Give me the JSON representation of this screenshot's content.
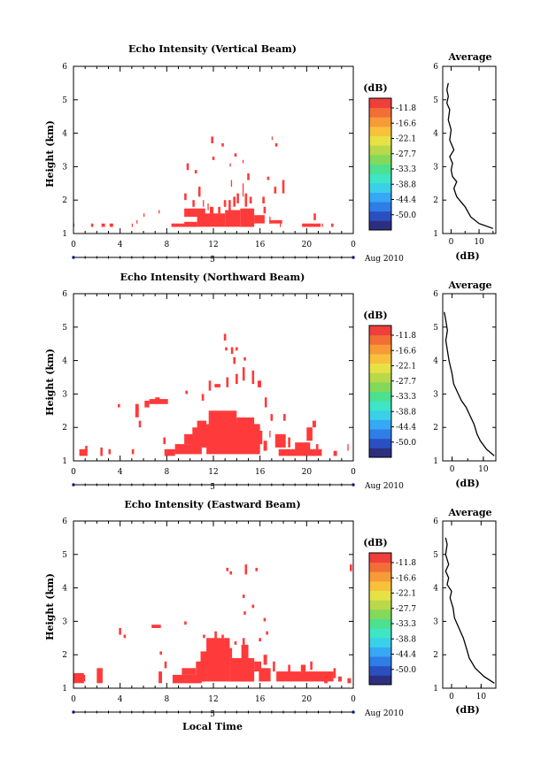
{
  "figure": {
    "bottom_xlabel": "Local Time",
    "colors": [
      "#2b2f7e",
      "#2a4fc1",
      "#2f7de6",
      "#36a8f4",
      "#3ad1e8",
      "#3ee6c5",
      "#4de08e",
      "#83d95a",
      "#b9d94a",
      "#e6e245",
      "#f7c13c",
      "#f79a38",
      "#f26e36",
      "#ee3f3b"
    ]
  },
  "chart_data": [
    {
      "type": "heatmap",
      "title": "Echo Intensity (Vertical Beam)",
      "ylabel": "Height (km)",
      "ylim": [
        1,
        6
      ],
      "yticks": [
        "1",
        "2",
        "3",
        "4",
        "5",
        "6"
      ],
      "xlim": [
        0,
        24
      ],
      "xticks": [
        "0",
        "4",
        "8",
        "12",
        "16",
        "20",
        "0"
      ],
      "date_day": "5",
      "date_label": "Aug 2010",
      "colorbar": {
        "label": "(dB)",
        "levels": [
          "-11.8",
          "-16.6",
          "-22.1",
          "-27.7",
          "-33.3",
          "-38.8",
          "-44.4",
          "-50.0"
        ]
      },
      "fill_color": "#ff3a3a",
      "segments": [
        [
          0.0,
          1.2,
          0.0,
          1.3
        ],
        [
          1.5,
          1.2,
          1.7,
          1.3
        ],
        [
          2.4,
          1.2,
          2.7,
          1.3
        ],
        [
          3.1,
          1.2,
          3.4,
          1.3
        ],
        [
          5.0,
          1.2,
          5.1,
          1.3
        ],
        [
          5.4,
          1.3,
          5.5,
          1.4
        ],
        [
          6.0,
          1.5,
          6.1,
          1.6
        ],
        [
          7.3,
          1.6,
          7.4,
          1.7
        ],
        [
          8.4,
          1.2,
          9.6,
          1.3
        ],
        [
          9.5,
          1.2,
          10.6,
          1.35
        ],
        [
          9.5,
          1.5,
          11.3,
          1.75
        ],
        [
          10.6,
          1.2,
          13.0,
          1.6
        ],
        [
          10.2,
          1.8,
          10.4,
          2.0
        ],
        [
          10.7,
          2.1,
          10.9,
          2.4
        ],
        [
          11.1,
          1.8,
          11.2,
          2.0
        ],
        [
          11.5,
          1.7,
          11.6,
          1.9
        ],
        [
          11.7,
          1.6,
          12.0,
          1.8
        ],
        [
          12.4,
          1.6,
          12.6,
          1.8
        ],
        [
          12.9,
          1.8,
          13.1,
          2.0
        ],
        [
          13.0,
          1.2,
          14.3,
          1.7
        ],
        [
          13.3,
          1.7,
          13.5,
          2.0
        ],
        [
          13.7,
          1.8,
          13.9,
          2.1
        ],
        [
          14.3,
          1.2,
          15.5,
          1.75
        ],
        [
          14.0,
          1.9,
          14.2,
          2.2
        ],
        [
          14.5,
          2.1,
          14.6,
          2.5
        ],
        [
          14.7,
          1.8,
          14.9,
          2.2
        ],
        [
          15.1,
          1.9,
          15.3,
          2.1
        ],
        [
          15.5,
          1.3,
          16.4,
          1.55
        ],
        [
          16.3,
          1.6,
          16.5,
          1.8
        ],
        [
          16.8,
          1.3,
          16.9,
          1.5
        ],
        [
          16.2,
          1.9,
          16.4,
          2.1
        ],
        [
          17.2,
          2.2,
          17.4,
          2.4
        ],
        [
          17.7,
          1.2,
          17.8,
          1.4
        ],
        [
          16.8,
          1.3,
          17.9,
          1.4
        ],
        [
          19.6,
          1.2,
          21.2,
          1.3
        ],
        [
          20.6,
          1.4,
          20.8,
          1.6
        ],
        [
          21.3,
          1.2,
          21.4,
          1.3
        ],
        [
          22.1,
          1.2,
          22.3,
          1.3
        ],
        [
          9.5,
          2.0,
          9.7,
          2.2
        ],
        [
          11.8,
          3.7,
          12.0,
          3.9
        ],
        [
          12.7,
          3.6,
          12.9,
          3.7
        ],
        [
          11.9,
          3.2,
          12.1,
          3.3
        ],
        [
          9.7,
          2.9,
          9.9,
          3.1
        ],
        [
          10.4,
          2.8,
          10.6,
          2.9
        ],
        [
          13.4,
          3.0,
          13.5,
          3.1
        ],
        [
          13.8,
          3.3,
          14.0,
          3.4
        ],
        [
          14.5,
          3.1,
          14.6,
          3.2
        ],
        [
          17.0,
          3.8,
          17.1,
          3.9
        ],
        [
          17.3,
          3.6,
          17.5,
          3.7
        ],
        [
          13.5,
          2.4,
          13.6,
          2.6
        ],
        [
          14.9,
          2.6,
          15.1,
          2.8
        ],
        [
          16.6,
          2.6,
          16.8,
          2.7
        ],
        [
          17.9,
          2.2,
          18.1,
          2.6
        ]
      ],
      "average": {
        "xticks": [
          "0",
          "10"
        ],
        "xlim": [
          -3,
          16
        ],
        "xlabel": "(dB)",
        "title": "Average",
        "profile": [
          [
            15,
            1.15
          ],
          [
            10,
            1.3
          ],
          [
            7,
            1.5
          ],
          [
            5,
            1.8
          ],
          [
            2,
            2.1
          ],
          [
            1,
            2.35
          ],
          [
            2,
            2.55
          ],
          [
            0.5,
            2.7
          ],
          [
            0,
            2.9
          ],
          [
            0.5,
            3.1
          ],
          [
            -0.5,
            3.3
          ],
          [
            1,
            3.5
          ],
          [
            -0.5,
            3.8
          ],
          [
            0,
            4.1
          ],
          [
            -1,
            4.4
          ],
          [
            -0.5,
            4.7
          ],
          [
            -1.5,
            4.9
          ],
          [
            -1,
            5.1
          ],
          [
            -1.5,
            5.3
          ],
          [
            -1,
            5.5
          ]
        ]
      }
    },
    {
      "type": "heatmap",
      "title": "Echo Intensity (Northward Beam)",
      "ylabel": "Height (km)",
      "ylim": [
        1,
        6
      ],
      "yticks": [
        "1",
        "2",
        "3",
        "4",
        "5",
        "6"
      ],
      "xlim": [
        0,
        24
      ],
      "xticks": [
        "0",
        "4",
        "8",
        "12",
        "16",
        "20",
        "0"
      ],
      "date_day": "5",
      "date_label": "Aug 2010",
      "colorbar": {
        "label": "(dB)",
        "levels": [
          "-11.8",
          "-16.6",
          "-22.1",
          "-27.7",
          "-33.3",
          "-38.8",
          "-44.4",
          "-50.0"
        ]
      },
      "fill_color": "#ff3a3a",
      "segments": [
        [
          0.5,
          1.15,
          1.2,
          1.35
        ],
        [
          1.0,
          1.3,
          1.2,
          1.45
        ],
        [
          2.3,
          1.15,
          2.5,
          1.4
        ],
        [
          3.0,
          1.2,
          3.2,
          1.35
        ],
        [
          5.0,
          1.2,
          5.2,
          1.35
        ],
        [
          7.8,
          1.15,
          8.7,
          1.35
        ],
        [
          7.7,
          1.5,
          7.9,
          1.7
        ],
        [
          8.7,
          1.2,
          11.0,
          1.5
        ],
        [
          9.5,
          1.5,
          10.3,
          1.8
        ],
        [
          10.2,
          1.4,
          11.6,
          2.0
        ],
        [
          10.6,
          1.7,
          11.4,
          2.2
        ],
        [
          11.4,
          1.2,
          16.0,
          2.1
        ],
        [
          11.6,
          2.0,
          12.8,
          2.5
        ],
        [
          12.8,
          1.9,
          14.0,
          2.5
        ],
        [
          14.0,
          1.8,
          15.5,
          2.3
        ],
        [
          15.3,
          1.5,
          16.2,
          1.9
        ],
        [
          16.3,
          1.3,
          16.6,
          1.6
        ],
        [
          16.8,
          1.7,
          16.9,
          1.9
        ],
        [
          17.3,
          1.4,
          18.2,
          1.8
        ],
        [
          17.6,
          1.15,
          21.3,
          1.35
        ],
        [
          18.4,
          1.4,
          18.6,
          1.7
        ],
        [
          19.0,
          1.3,
          20.3,
          1.55
        ],
        [
          20.0,
          1.6,
          20.5,
          2.0
        ],
        [
          20.8,
          1.2,
          21.0,
          1.5
        ],
        [
          22.3,
          1.15,
          22.6,
          1.3
        ],
        [
          23.5,
          1.3,
          23.6,
          1.5
        ],
        [
          5.3,
          2.3,
          5.6,
          2.7
        ],
        [
          5.6,
          2.0,
          5.8,
          2.2
        ],
        [
          6.1,
          2.6,
          6.5,
          2.8
        ],
        [
          6.5,
          2.7,
          8.1,
          2.85
        ],
        [
          7.0,
          2.8,
          7.4,
          2.9
        ],
        [
          9.6,
          3.0,
          9.8,
          3.1
        ],
        [
          11.0,
          2.8,
          11.2,
          3.0
        ],
        [
          11.6,
          3.1,
          11.8,
          3.4
        ],
        [
          12.1,
          3.2,
          12.6,
          3.3
        ],
        [
          13.1,
          3.2,
          13.3,
          3.5
        ],
        [
          13.9,
          3.3,
          14.1,
          3.6
        ],
        [
          14.5,
          3.4,
          14.7,
          3.8
        ],
        [
          15.3,
          3.3,
          15.5,
          3.7
        ],
        [
          15.8,
          3.2,
          16.1,
          3.4
        ],
        [
          16.4,
          2.6,
          16.6,
          2.9
        ],
        [
          16.9,
          2.2,
          17.1,
          2.4
        ],
        [
          18.0,
          2.2,
          18.2,
          2.4
        ],
        [
          20.5,
          2.0,
          20.8,
          2.2
        ],
        [
          12.9,
          4.6,
          13.1,
          4.8
        ],
        [
          13.7,
          3.9,
          13.9,
          4.1
        ],
        [
          14.6,
          4.0,
          14.8,
          4.1
        ],
        [
          13.5,
          4.2,
          13.7,
          4.4
        ],
        [
          13.9,
          4.3,
          14.1,
          4.4
        ],
        [
          13.0,
          4.3,
          13.2,
          4.4
        ],
        [
          3.8,
          2.6,
          4.0,
          2.7
        ],
        [
          5.4,
          2.5,
          5.6,
          2.6
        ]
      ],
      "average": {
        "xticks": [
          "0",
          "10"
        ],
        "xlim": [
          -3,
          14
        ],
        "xlabel": "(dB)",
        "title": "Average",
        "profile": [
          [
            13.5,
            1.15
          ],
          [
            11,
            1.35
          ],
          [
            9,
            1.6
          ],
          [
            8,
            1.8
          ],
          [
            7,
            2.1
          ],
          [
            5.5,
            2.4
          ],
          [
            4.5,
            2.6
          ],
          [
            3,
            2.8
          ],
          [
            2,
            3.0
          ],
          [
            0.5,
            3.3
          ],
          [
            0,
            3.6
          ],
          [
            -1,
            4.0
          ],
          [
            -1.5,
            4.3
          ],
          [
            -2,
            4.6
          ],
          [
            -1.5,
            4.9
          ],
          [
            -2,
            5.2
          ],
          [
            -2.5,
            5.45
          ]
        ]
      }
    },
    {
      "type": "heatmap",
      "title": "Echo Intensity (Eastward Beam)",
      "ylabel": "Height (km)",
      "ylim": [
        1,
        6
      ],
      "yticks": [
        "1",
        "2",
        "3",
        "4",
        "5",
        "6"
      ],
      "xlim": [
        0,
        24
      ],
      "xticks": [
        "0",
        "4",
        "8",
        "12",
        "16",
        "20",
        "0"
      ],
      "date_day": "5",
      "date_label": "Aug 2010",
      "colorbar": {
        "label": "(dB)",
        "levels": [
          "-11.8",
          "-16.6",
          "-22.1",
          "-27.7",
          "-33.3",
          "-38.8",
          "-44.4",
          "-50.0"
        ]
      },
      "fill_color": "#ff3a3a",
      "segments": [
        [
          0.0,
          1.15,
          0.9,
          1.45
        ],
        [
          0.6,
          1.2,
          1.0,
          1.4
        ],
        [
          2.0,
          1.15,
          2.5,
          1.6
        ],
        [
          7.3,
          1.15,
          7.6,
          1.5
        ],
        [
          7.8,
          1.6,
          8.0,
          1.8
        ],
        [
          7.4,
          2.0,
          7.6,
          2.1
        ],
        [
          8.5,
          1.15,
          11.0,
          1.4
        ],
        [
          9.3,
          1.4,
          10.5,
          1.6
        ],
        [
          10.5,
          1.2,
          11.4,
          1.8
        ],
        [
          10.9,
          1.6,
          11.6,
          2.1
        ],
        [
          11.4,
          1.2,
          13.4,
          2.5
        ],
        [
          12.1,
          2.2,
          12.3,
          2.7
        ],
        [
          13.1,
          1.9,
          13.6,
          2.2
        ],
        [
          13.4,
          1.2,
          15.5,
          1.9
        ],
        [
          14.4,
          1.9,
          15.0,
          2.3
        ],
        [
          15.0,
          1.3,
          15.4,
          1.6
        ],
        [
          15.5,
          1.5,
          16.1,
          1.8
        ],
        [
          15.9,
          1.2,
          16.9,
          1.6
        ],
        [
          16.3,
          1.7,
          16.6,
          2.0
        ],
        [
          17.1,
          1.5,
          17.3,
          1.8
        ],
        [
          17.4,
          1.2,
          22.3,
          1.5
        ],
        [
          18.4,
          1.4,
          18.6,
          1.7
        ],
        [
          19.5,
          1.5,
          19.9,
          1.7
        ],
        [
          20.3,
          1.55,
          20.5,
          1.8
        ],
        [
          21.5,
          1.15,
          21.8,
          1.3
        ],
        [
          22.3,
          1.3,
          22.5,
          1.6
        ],
        [
          22.7,
          1.2,
          23.0,
          1.35
        ],
        [
          23.5,
          1.15,
          23.8,
          1.3
        ],
        [
          3.9,
          2.6,
          4.1,
          2.8
        ],
        [
          4.3,
          2.5,
          4.5,
          2.6
        ],
        [
          6.7,
          2.8,
          7.5,
          2.9
        ],
        [
          9.5,
          2.9,
          9.7,
          3.0
        ],
        [
          11.1,
          2.5,
          11.3,
          2.6
        ],
        [
          12.7,
          2.5,
          12.9,
          2.6
        ],
        [
          13.8,
          2.3,
          14.0,
          2.4
        ],
        [
          14.5,
          2.3,
          14.7,
          2.5
        ],
        [
          15.9,
          2.4,
          16.1,
          2.5
        ],
        [
          16.5,
          2.6,
          16.7,
          2.7
        ],
        [
          16.3,
          3.0,
          16.5,
          3.1
        ],
        [
          14.5,
          3.7,
          14.7,
          3.8
        ],
        [
          15.3,
          3.4,
          15.5,
          3.5
        ],
        [
          14.6,
          3.2,
          14.8,
          3.3
        ],
        [
          13.1,
          4.5,
          13.3,
          4.6
        ],
        [
          14.7,
          4.4,
          14.9,
          4.7
        ],
        [
          15.6,
          4.5,
          15.8,
          4.6
        ],
        [
          13.4,
          4.4,
          13.6,
          4.5
        ],
        [
          23.7,
          4.5,
          23.9,
          4.7
        ]
      ],
      "average": {
        "xticks": [
          "0",
          "10"
        ],
        "xlim": [
          -3,
          15
        ],
        "xlabel": "(dB)",
        "title": "Average",
        "profile": [
          [
            14.5,
            1.15
          ],
          [
            11,
            1.35
          ],
          [
            8,
            1.6
          ],
          [
            6,
            1.9
          ],
          [
            5,
            2.2
          ],
          [
            4,
            2.5
          ],
          [
            2.5,
            2.8
          ],
          [
            1,
            3.1
          ],
          [
            0.5,
            3.4
          ],
          [
            -0.5,
            3.7
          ],
          [
            0,
            3.9
          ],
          [
            -1.5,
            4.1
          ],
          [
            -1,
            4.3
          ],
          [
            -2,
            4.5
          ],
          [
            -1,
            4.7
          ],
          [
            -2,
            5.0
          ],
          [
            -1.5,
            5.3
          ],
          [
            -2,
            5.5
          ]
        ]
      }
    }
  ]
}
